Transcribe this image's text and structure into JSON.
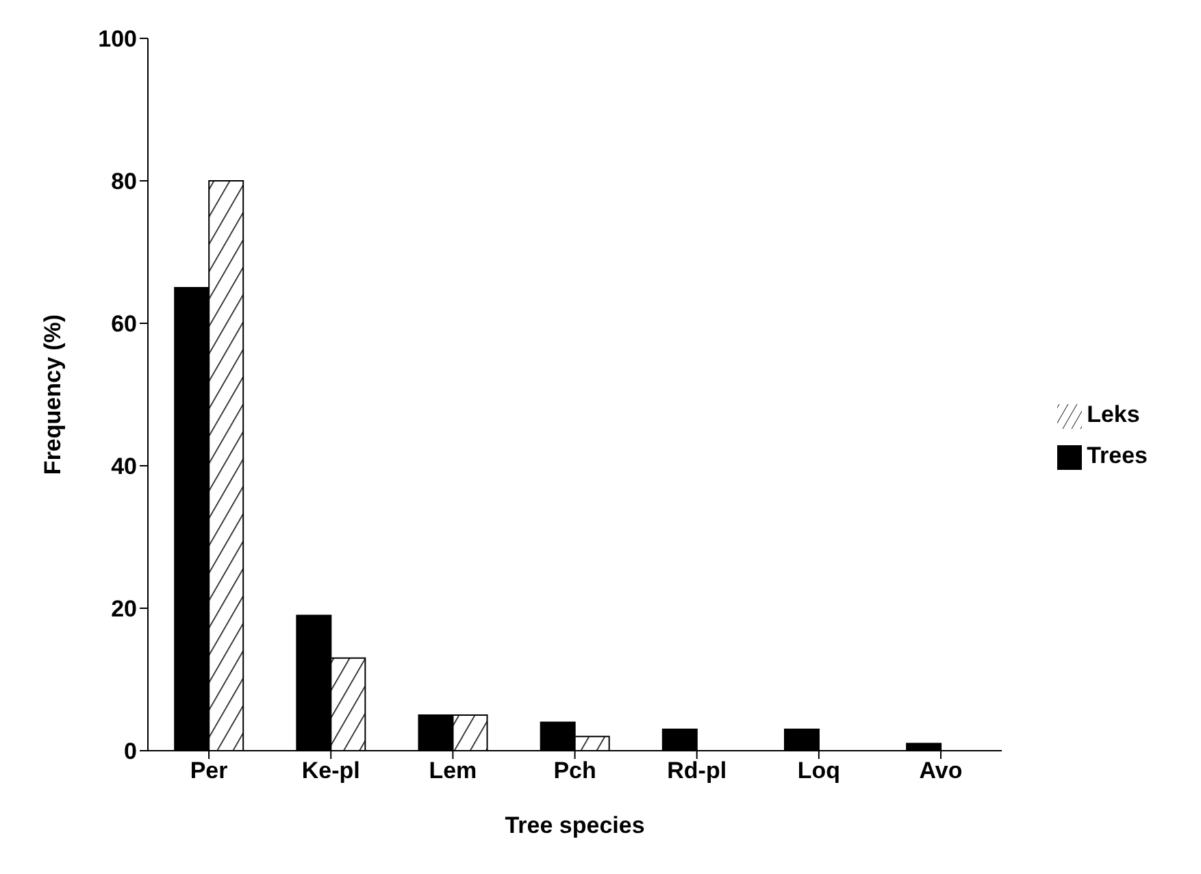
{
  "chart_data": {
    "type": "bar",
    "xlabel": "Tree species",
    "ylabel": "Frequency (%)",
    "categories": [
      "Per",
      "Ke-pl",
      "Lem",
      "Pch",
      "Rd-pl",
      "Loq",
      "Avo"
    ],
    "series": [
      {
        "name": "Trees",
        "color": "#000000",
        "values": [
          65,
          19,
          5,
          4,
          3,
          3,
          1
        ]
      },
      {
        "name": "Leks",
        "color": "#000000",
        "values": [
          80,
          13,
          5,
          2,
          0,
          0,
          0
        ]
      }
    ],
    "ylim": [
      0,
      100
    ],
    "yticks": [
      0,
      20,
      40,
      60,
      80,
      100
    ],
    "grid": false,
    "legend": "right"
  }
}
